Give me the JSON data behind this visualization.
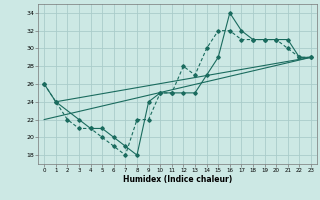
{
  "title": "",
  "xlabel": "Humidex (Indice chaleur)",
  "bg_color": "#cce8e4",
  "grid_color": "#aaccca",
  "line_color": "#1a6b5e",
  "xlim": [
    -0.5,
    23.5
  ],
  "ylim": [
    17,
    35
  ],
  "xticks": [
    0,
    1,
    2,
    3,
    4,
    5,
    6,
    7,
    8,
    9,
    10,
    11,
    12,
    13,
    14,
    15,
    16,
    17,
    18,
    19,
    20,
    21,
    22,
    23
  ],
  "yticks": [
    18,
    20,
    22,
    24,
    26,
    28,
    30,
    32,
    34
  ],
  "line1_x": [
    0,
    1,
    2,
    3,
    4,
    5,
    6,
    7,
    8,
    9,
    10,
    11,
    12,
    13,
    14,
    15,
    16,
    17,
    18,
    19,
    20,
    21,
    22,
    23
  ],
  "line1_y": [
    26,
    24,
    22,
    21,
    21,
    20,
    19,
    18,
    22,
    22,
    25,
    25,
    28,
    27,
    30,
    32,
    32,
    31,
    31,
    31,
    31,
    30,
    29,
    29
  ],
  "line2_x": [
    0,
    1,
    3,
    4,
    5,
    6,
    7,
    8,
    9,
    10,
    11,
    12,
    13,
    14,
    15,
    16,
    17,
    18,
    19,
    20,
    21,
    22,
    23
  ],
  "line2_y": [
    26,
    24,
    22,
    21,
    21,
    20,
    19,
    18,
    24,
    25,
    25,
    25,
    25,
    27,
    29,
    34,
    32,
    31,
    31,
    31,
    31,
    29,
    29
  ],
  "line3_x": [
    0,
    23
  ],
  "line3_y": [
    22,
    29
  ],
  "line4_x": [
    1,
    23
  ],
  "line4_y": [
    24,
    29
  ]
}
